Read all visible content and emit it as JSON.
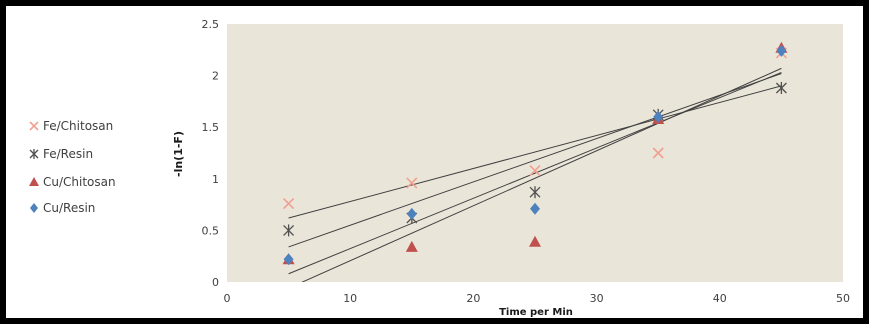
{
  "chart_data": {
    "type": "scatter",
    "xlabel": "Time per Min",
    "ylabel": "-ln(1-F)",
    "xlim": [
      0,
      50
    ],
    "ylim": [
      0,
      2.5
    ],
    "x_ticks": [
      "0",
      "10",
      "20",
      "30",
      "40",
      "50"
    ],
    "y_ticks": [
      "0",
      "0.5",
      "1",
      "1.5",
      "2",
      "2.5"
    ],
    "plot_background": "#eae5d9",
    "grid": false,
    "legend_position": "left",
    "series": [
      {
        "name": "Fe/Chitosan",
        "marker": "x",
        "color": "#f0a090",
        "x": [
          5,
          15,
          25,
          35,
          45
        ],
        "y": [
          0.76,
          0.96,
          1.08,
          1.25,
          2.22
        ]
      },
      {
        "name": "Fe/Resin",
        "marker": "star",
        "color": "#505050",
        "x": [
          5,
          15,
          25,
          35,
          45
        ],
        "y": [
          0.5,
          0.62,
          0.87,
          1.62,
          1.88
        ]
      },
      {
        "name": "Cu/Chitosan",
        "marker": "triangle",
        "color": "#c0504d",
        "x": [
          5,
          15,
          25,
          35,
          45
        ],
        "y": [
          0.22,
          0.34,
          0.39,
          1.58,
          2.27
        ]
      },
      {
        "name": "Cu/Resin",
        "marker": "diamond",
        "color": "#4f81bd",
        "x": [
          5,
          15,
          25,
          35,
          45
        ],
        "y": [
          0.22,
          0.66,
          0.71,
          1.6,
          2.24
        ]
      }
    ],
    "trendlines": [
      {
        "series": "Fe/Chitosan",
        "x": [
          5,
          45
        ],
        "y": [
          0.62,
          1.9
        ]
      },
      {
        "series": "Fe/Resin",
        "x": [
          5,
          45
        ],
        "y": [
          0.34,
          2.02
        ]
      },
      {
        "series": "Cu/Chitosan",
        "x": [
          5,
          45
        ],
        "y": [
          -0.06,
          2.07
        ]
      },
      {
        "series": "Cu/Resin",
        "x": [
          5,
          45
        ],
        "y": [
          0.08,
          2.03
        ]
      }
    ]
  }
}
